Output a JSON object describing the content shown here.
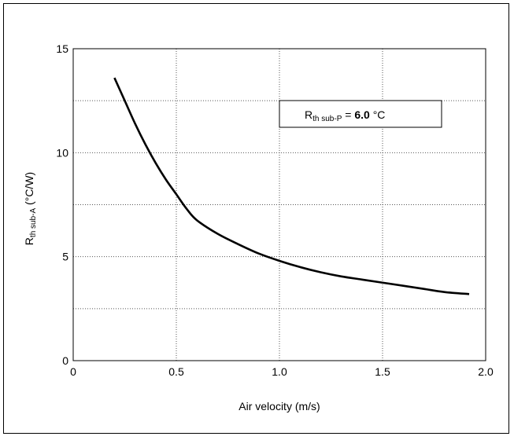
{
  "chart_data": {
    "type": "line",
    "title": "",
    "xlabel": "Air velocity (m/s)",
    "ylabel_main": "R",
    "ylabel_sub": "th sub-A",
    "ylabel_tail": " (°C/W)",
    "xlim": [
      0,
      2.0
    ],
    "ylim": [
      0,
      15
    ],
    "x_ticks": [
      "0",
      "0.5",
      "1.0",
      "1.5",
      "2.0"
    ],
    "x_tick_values": [
      0,
      0.5,
      1.0,
      1.5,
      2.0
    ],
    "y_ticks": [
      "0",
      "5",
      "10",
      "15"
    ],
    "y_tick_values": [
      0,
      5,
      10,
      15
    ],
    "grid": true,
    "grid_x_values": [
      0.5,
      1.0,
      1.5
    ],
    "grid_y_values": [
      2.5,
      5,
      7.5,
      10,
      12.5
    ],
    "series": [
      {
        "x": [
          0.2,
          0.25,
          0.3,
          0.35,
          0.4,
          0.45,
          0.5,
          0.55,
          0.6,
          0.7,
          0.8,
          0.9,
          1.0,
          1.1,
          1.2,
          1.3,
          1.4,
          1.5,
          1.6,
          1.7,
          1.8,
          1.92
        ],
        "y": [
          13.6,
          12.5,
          11.4,
          10.4,
          9.5,
          8.7,
          8.0,
          7.3,
          6.75,
          6.1,
          5.6,
          5.15,
          4.8,
          4.5,
          4.25,
          4.05,
          3.9,
          3.75,
          3.6,
          3.45,
          3.3,
          3.2
        ]
      }
    ],
    "annotation": {
      "main": "R",
      "sub": "th sub-P",
      "tail": " = ",
      "value": "6.0",
      "unit": " °C"
    },
    "colors": {
      "line": "#000000",
      "grid": "#555555",
      "frame": "#000000"
    }
  }
}
